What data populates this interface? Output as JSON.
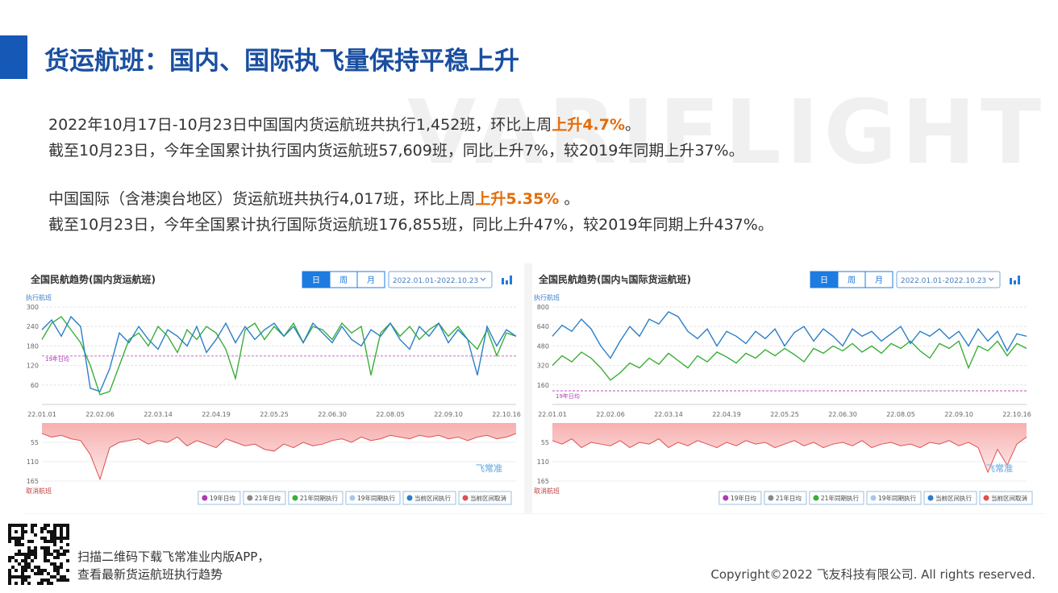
{
  "header": {
    "title": "货运航班：国内、国际执飞量保持平稳上升",
    "watermark": "VARIFLIGHT"
  },
  "paragraphs": [
    {
      "text": "2022年10月17日-10月23日中国国内货运航班共执行1,452班，环比上周",
      "emphasis": "上升4.7%",
      "after": "。"
    },
    {
      "text": "截至10月23日，今年全国累计执行国内货运航班57,609班，同比上升7%，较2019年同期上升37%。"
    },
    {
      "text": "中国国际（含港澳台地区）货运航班共执行4,017班，环比上周",
      "emphasis": "上升5.35%",
      "after": " 。"
    },
    {
      "text": "截至10月23日，今年全国累计执行国际货运航班176,855班，同比上升47%，较2019年同期上升437%。"
    }
  ],
  "chart_data": [
    {
      "type": "line",
      "title": "全国民航趋势(国内货运航班)",
      "buttons": [
        "日",
        "周",
        "月"
      ],
      "date_range": "2022.01.01-2022.10.23",
      "watermark": "飞常准",
      "ylabel": "执行航班",
      "lower_ylabel": "取消航班",
      "categories": [
        "22.01.01",
        null,
        null,
        null,
        null,
        null,
        "22.02.06",
        null,
        null,
        null,
        null,
        null,
        "22.03.14",
        null,
        null,
        null,
        null,
        null,
        "22.04.19",
        null,
        null,
        null,
        null,
        null,
        "22.05.25",
        null,
        null,
        null,
        null,
        null,
        "22.06.30",
        null,
        null,
        null,
        null,
        null,
        "22.08.05",
        null,
        null,
        null,
        null,
        null,
        "22.09.10",
        null,
        null,
        null,
        null,
        null,
        "22.10.16",
        null
      ],
      "ylim": [
        0,
        300
      ],
      "yticks": [
        60,
        120,
        180,
        240,
        300
      ],
      "lower_ylim": [
        0,
        165
      ],
      "lower_yticks": [
        55,
        110,
        165
      ],
      "grid": true,
      "reference_line": {
        "name": "19年日均",
        "value": 149,
        "color": "#b03ab5"
      },
      "extra_legend": [
        {
          "name": "21年日均",
          "color": "#888888"
        },
        {
          "name": "19年同期执行",
          "color": "#a9c6e8"
        }
      ],
      "series": [
        {
          "name": "21年同期执行",
          "color": "#3aae3a",
          "values": [
            200,
            250,
            270,
            230,
            190,
            120,
            30,
            40,
            120,
            200,
            220,
            180,
            240,
            210,
            160,
            230,
            200,
            240,
            220,
            170,
            80,
            230,
            250,
            200,
            240,
            210,
            250,
            190,
            240,
            230,
            200,
            250,
            220,
            240,
            90,
            220,
            250,
            210,
            240,
            200,
            230,
            250,
            210,
            240,
            200,
            170,
            230,
            150,
            220,
            210
          ]
        },
        {
          "name": "当前区间执行",
          "color": "#2a7fc9",
          "values": [
            230,
            260,
            210,
            270,
            240,
            50,
            40,
            110,
            220,
            190,
            240,
            200,
            170,
            230,
            210,
            180,
            240,
            160,
            200,
            250,
            190,
            240,
            200,
            230,
            250,
            210,
            240,
            190,
            250,
            220,
            190,
            240,
            200,
            180,
            230,
            210,
            250,
            200,
            170,
            240,
            210,
            250,
            190,
            230,
            200,
            90,
            240,
            180,
            230,
            210
          ]
        }
      ],
      "lower_series": {
        "name": "当前区间取消",
        "color": "#e05050",
        "values": [
          30,
          40,
          35,
          45,
          50,
          90,
          160,
          70,
          55,
          50,
          45,
          60,
          50,
          55,
          40,
          65,
          50,
          60,
          70,
          45,
          55,
          65,
          60,
          75,
          80,
          60,
          70,
          55,
          65,
          60,
          50,
          45,
          55,
          40,
          50,
          45,
          35,
          40,
          45,
          35,
          40,
          35,
          45,
          40,
          50,
          40,
          35,
          45,
          40,
          30
        ]
      }
    },
    {
      "type": "line",
      "title": "全国民航趋势(国内≒国际货运航班)",
      "buttons": [
        "日",
        "周",
        "月"
      ],
      "date_range": "2022.01.01-2022.10.23",
      "watermark": "飞常准",
      "ylabel": "执行航班",
      "lower_ylabel": "取消航班",
      "categories": [
        "22.01.01",
        null,
        null,
        null,
        null,
        null,
        "22.02.06",
        null,
        null,
        null,
        null,
        null,
        "22.03.14",
        null,
        null,
        null,
        null,
        null,
        "22.04.19",
        null,
        null,
        null,
        null,
        null,
        "22.05.25",
        null,
        null,
        null,
        null,
        null,
        "22.06.30",
        null,
        null,
        null,
        null,
        null,
        "22.08.05",
        null,
        null,
        null,
        null,
        null,
        "22.09.10",
        null,
        null,
        null,
        null,
        null,
        "22.10.16",
        null
      ],
      "ylim": [
        0,
        800
      ],
      "yticks": [
        160,
        320,
        480,
        640,
        800
      ],
      "lower_ylim": [
        0,
        165
      ],
      "lower_yticks": [
        55,
        110,
        165
      ],
      "grid": true,
      "reference_line": {
        "name": "19年日均",
        "value": 112,
        "color": "#b03ab5"
      },
      "extra_legend": [
        {
          "name": "21年日均",
          "color": "#888888"
        },
        {
          "name": "19年同期执行",
          "color": "#a9c6e8"
        }
      ],
      "series": [
        {
          "name": "21年同期执行",
          "color": "#3aae3a",
          "values": [
            320,
            400,
            350,
            430,
            380,
            300,
            200,
            260,
            340,
            300,
            380,
            330,
            420,
            360,
            300,
            400,
            350,
            430,
            390,
            340,
            420,
            380,
            450,
            400,
            460,
            410,
            350,
            460,
            420,
            480,
            440,
            500,
            430,
            480,
            420,
            500,
            460,
            520,
            440,
            380,
            500,
            460,
            520,
            300,
            480,
            440,
            520,
            400,
            500,
            460
          ]
        },
        {
          "name": "当前区间执行",
          "color": "#2a7fc9",
          "values": [
            560,
            650,
            600,
            700,
            620,
            480,
            380,
            520,
            640,
            560,
            700,
            660,
            760,
            720,
            600,
            540,
            620,
            480,
            600,
            560,
            500,
            600,
            540,
            620,
            480,
            590,
            640,
            520,
            620,
            560,
            480,
            620,
            560,
            600,
            520,
            580,
            640,
            500,
            600,
            560,
            620,
            540,
            600,
            480,
            620,
            520,
            600,
            440,
            580,
            560
          ]
        }
      ],
      "lower_series": {
        "name": "当前区间取消",
        "color": "#e05050",
        "values": [
          50,
          60,
          45,
          70,
          55,
          60,
          65,
          50,
          70,
          55,
          60,
          45,
          70,
          55,
          65,
          50,
          60,
          70,
          55,
          65,
          50,
          60,
          55,
          70,
          60,
          50,
          65,
          55,
          70,
          60,
          55,
          65,
          50,
          70,
          60,
          55,
          65,
          60,
          70,
          55,
          60,
          50,
          65,
          55,
          70,
          140,
          75,
          120,
          60,
          40
        ]
      }
    }
  ],
  "footer": {
    "qr_lines": [
      "扫描二维码下载飞常准业内版APP，",
      "查看最新货运航班执行趋势"
    ],
    "copyright": "Copyright©2022 飞友科技有限公司. All rights reserved."
  }
}
